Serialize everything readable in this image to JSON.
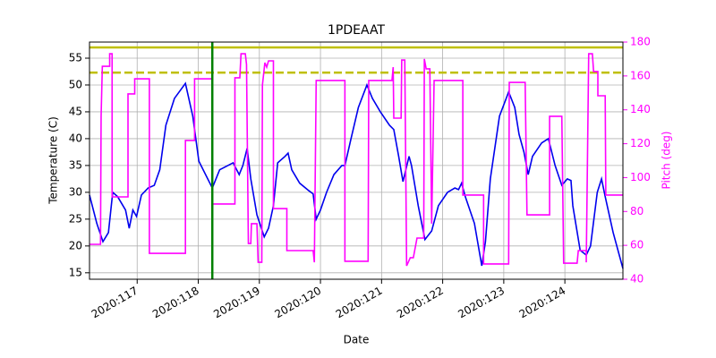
{
  "chart_data": {
    "type": "line",
    "title": "1PDEAAT",
    "x_label": "Date",
    "y_label": "Temperature (C)",
    "y2_label": "Pitch (deg)",
    "y2_color": "#ff00ff",
    "xlim": [
      116.22,
      124.95
    ],
    "xticks": [
      {
        "value": 117,
        "label": "2020:117"
      },
      {
        "value": 118,
        "label": "2020:118"
      },
      {
        "value": 119,
        "label": "2020:119"
      },
      {
        "value": 120,
        "label": "2020:120"
      },
      {
        "value": 121,
        "label": "2020:121"
      },
      {
        "value": 122,
        "label": "2020:122"
      },
      {
        "value": 123,
        "label": "2020:123"
      },
      {
        "value": 124,
        "label": "2020:124"
      }
    ],
    "ylim": [
      13.8,
      58
    ],
    "yticks": [
      15,
      20,
      25,
      30,
      35,
      40,
      45,
      50,
      55
    ],
    "y2lim": [
      40,
      180
    ],
    "y2ticks": [
      40,
      60,
      80,
      100,
      120,
      140,
      160,
      180
    ],
    "grid": true,
    "hlines": [
      {
        "value": 57,
        "color": "#bfbf00",
        "style": "solid"
      },
      {
        "value": 52.3,
        "color": "#bfbf00",
        "style": "dashed"
      }
    ],
    "vlines": [
      {
        "value": 118.23,
        "color": "#008000"
      }
    ],
    "series": [
      {
        "color": "#0000ee",
        "x": [
          116.22,
          116.34,
          116.44,
          116.53,
          116.6,
          116.68,
          116.81,
          116.87,
          116.93,
          116.99,
          117.07,
          117.18,
          117.28,
          117.37,
          117.47,
          117.61,
          117.79,
          117.91,
          118.01,
          118.23,
          118.35,
          118.57,
          118.67,
          118.73,
          118.8,
          118.86,
          118.96,
          119.08,
          119.15,
          119.23,
          119.3,
          119.42,
          119.47,
          119.53,
          119.66,
          119.81,
          119.88,
          119.93,
          120.0,
          120.1,
          120.22,
          120.35,
          120.4,
          120.5,
          120.62,
          120.76,
          120.85,
          120.98,
          121.13,
          121.2,
          121.28,
          121.35,
          121.45,
          121.49,
          121.6,
          121.71,
          121.82,
          121.93,
          122.08,
          122.2,
          122.26,
          122.31,
          122.37,
          122.52,
          122.64,
          122.7,
          122.78,
          122.93,
          123.08,
          123.18,
          123.25,
          123.33,
          123.4,
          123.47,
          123.62,
          123.73,
          123.84,
          123.95,
          124.04,
          124.1,
          124.13,
          124.25,
          124.35,
          124.42,
          124.53,
          124.6,
          124.66,
          124.79,
          124.95
        ],
        "values": [
          29.5,
          24.2,
          20.8,
          22.5,
          30,
          29.2,
          26.7,
          23.3,
          26.7,
          25.5,
          29.5,
          30.8,
          31.3,
          34.2,
          42.5,
          47.5,
          50.3,
          44.2,
          35.8,
          30.8,
          34.2,
          35.5,
          33.3,
          35,
          38.2,
          32.5,
          25.8,
          21.7,
          23.3,
          27.5,
          35.5,
          36.7,
          37.3,
          34.2,
          31.7,
          30.3,
          29.7,
          25,
          26.7,
          30,
          33.3,
          35,
          35,
          40,
          45.8,
          50,
          47.5,
          45,
          42.5,
          41.7,
          36.7,
          32,
          36.7,
          35,
          27.5,
          21.2,
          22.8,
          27.5,
          30,
          30.8,
          30.5,
          31.7,
          29.2,
          24.2,
          16.3,
          20.8,
          32.5,
          44.2,
          48.7,
          45.8,
          40.8,
          37.5,
          33.3,
          36.7,
          39.2,
          40,
          35,
          31.3,
          32.5,
          32.2,
          27.5,
          19.2,
          18.3,
          20,
          30,
          32.5,
          29.2,
          22.5,
          15.8
        ]
      },
      {
        "color": "#ff00ff",
        "axis": "y2",
        "x": [
          116.22,
          116.4,
          116.41,
          116.43,
          116.55,
          116.55,
          116.59,
          116.59,
          116.85,
          116.85,
          116.96,
          116.96,
          117.2,
          117.2,
          117.79,
          117.79,
          117.94,
          117.94,
          118.23,
          118.23,
          118.6,
          118.6,
          118.68,
          118.7,
          118.77,
          118.79,
          118.82,
          118.86,
          118.87,
          118.96,
          118.98,
          119.04,
          119.05,
          119.09,
          119.12,
          119.15,
          119.23,
          119.23,
          119.45,
          119.45,
          119.88,
          119.9,
          119.93,
          120.4,
          120.4,
          120.78,
          120.79,
          121.17,
          121.19,
          121.2,
          121.32,
          121.33,
          121.38,
          121.41,
          121.47,
          121.52,
          121.58,
          121.69,
          121.7,
          121.73,
          121.79,
          121.82,
          121.86,
          122.33,
          122.33,
          122.67,
          122.67,
          123.08,
          123.09,
          123.35,
          123.38,
          123.75,
          123.75,
          123.95,
          123.98,
          124.2,
          124.22,
          124.35,
          124.35,
          124.39,
          124.45,
          124.47,
          124.54,
          124.54,
          124.66,
          124.67,
          124.95
        ],
        "values": [
          60.6,
          60.6,
          136.2,
          165.7,
          165.7,
          173.1,
          173.1,
          88.6,
          88.6,
          149.4,
          149.4,
          158.3,
          158.3,
          55.3,
          55.3,
          121.9,
          121.9,
          158.3,
          158.3,
          84.4,
          84.4,
          158.9,
          158.9,
          173.1,
          173.1,
          166.8,
          61.1,
          61.1,
          72.8,
          72.8,
          50,
          50,
          154.6,
          167.8,
          165.2,
          168.9,
          168.9,
          81.7,
          81.7,
          56.9,
          56.9,
          50,
          157.3,
          157.3,
          50.6,
          50.6,
          157.3,
          157.3,
          165.2,
          135.1,
          135.1,
          169.4,
          169.4,
          47.9,
          52.7,
          52.7,
          64.3,
          64.3,
          170,
          164.2,
          164.2,
          72.8,
          157.3,
          157.3,
          89.7,
          89.7,
          49,
          49,
          156.2,
          156.2,
          78,
          78,
          136.2,
          136.2,
          49.5,
          49.5,
          56.9,
          56.9,
          50,
          173.1,
          173.1,
          162.6,
          162.6,
          148.3,
          148.3,
          89.7,
          89.7
        ]
      }
    ]
  }
}
